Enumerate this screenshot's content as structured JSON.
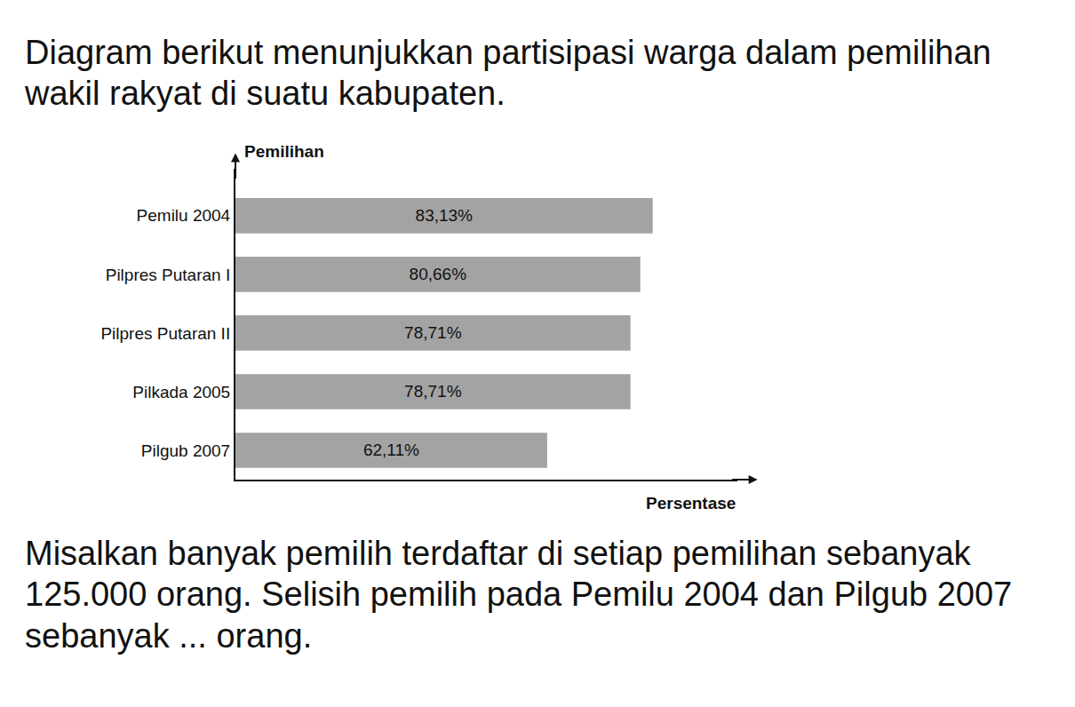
{
  "document": {
    "intro": "Diagram berikut menunjukkan partisipasi warga dalam pemilihan wakil rakyat di suatu kabupaten.",
    "question": "Misalkan banyak pemilih terdaftar di setiap pemilihan sebanyak 125.000 orang. Selisih pemilih pada Pemilu 2004 dan Pilgub 2007 sebanyak ... orang."
  },
  "chart_data": {
    "type": "bar",
    "orientation": "horizontal",
    "y_label": "Pemilihan",
    "x_label": "Persentase",
    "categories": [
      "Pemilu 2004",
      "Pilpres Putaran I",
      "Pilpres Putaran II",
      "Pilkada 2005",
      "Pilgub 2007"
    ],
    "values": [
      83.13,
      80.66,
      78.71,
      78.71,
      62.11
    ],
    "value_labels": [
      "83,13%",
      "80,66%",
      "78,71%",
      "78,71%",
      "62,11%"
    ],
    "color": "#a3a3a3",
    "xlim": [
      0,
      100
    ],
    "tick_labels": "y",
    "grid": false,
    "data_labels": true
  }
}
